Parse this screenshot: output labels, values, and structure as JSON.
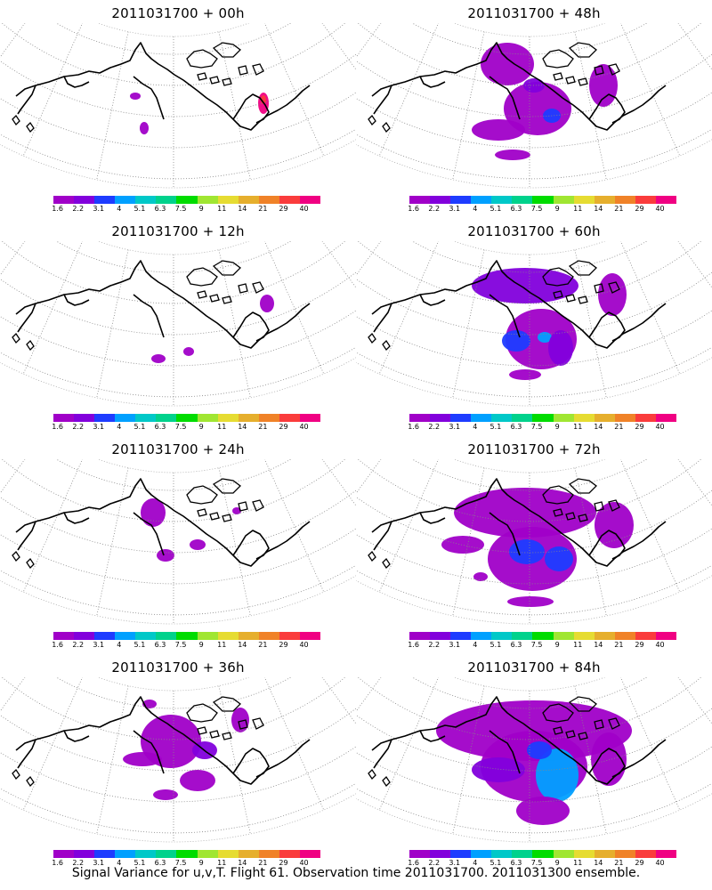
{
  "panels": [
    {
      "title": "2011031700 + 00h",
      "stage": 0
    },
    {
      "title": "2011031700 + 48h",
      "stage": 4
    },
    {
      "title": "2011031700 + 12h",
      "stage": 1
    },
    {
      "title": "2011031700 + 60h",
      "stage": 5
    },
    {
      "title": "2011031700 + 24h",
      "stage": 2
    },
    {
      "title": "2011031700 + 72h",
      "stage": 6
    },
    {
      "title": "2011031700 + 36h",
      "stage": 3
    },
    {
      "title": "2011031700 + 84h",
      "stage": 7
    }
  ],
  "colorbar": {
    "colors": [
      "#a000c8",
      "#8200dc",
      "#1e3cff",
      "#00a0ff",
      "#00c8c8",
      "#00d28c",
      "#00dc00",
      "#a0e632",
      "#e6dc32",
      "#e6af2d",
      "#f08228",
      "#fa3c3c",
      "#f00082"
    ],
    "labels": [
      "1.6",
      "2.2",
      "3.1",
      "4",
      "5.1",
      "6.3",
      "7.5",
      "9",
      "11",
      "14",
      "21",
      "29",
      "40"
    ]
  },
  "footer": "Signal Variance for u,v,T. Flight 61. Observation time 2011031700. 2011031300 ensemble."
}
